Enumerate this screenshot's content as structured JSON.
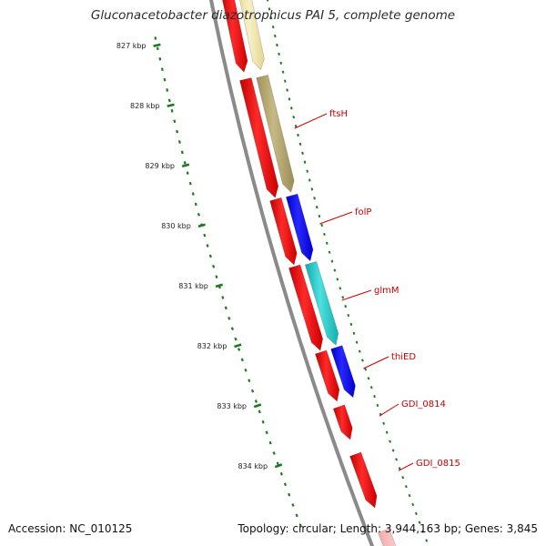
{
  "title": "Gluconacetobacter diazotrophicus PAI 5, complete genome",
  "footer": {
    "accession": "Accession: NC_010125",
    "summary": "Topology: circular; Length: 3,944,163 bp; Genes: 3,845"
  },
  "ticks": [
    {
      "label": "827 kbp"
    },
    {
      "label": "828 kbp"
    },
    {
      "label": "829 kbp"
    },
    {
      "label": "830 kbp"
    },
    {
      "label": "831 kbp"
    },
    {
      "label": "832 kbp"
    },
    {
      "label": "833 kbp"
    },
    {
      "label": "834 kbp"
    }
  ],
  "genes": [
    {
      "label": "ftsH"
    },
    {
      "label": "folP"
    },
    {
      "label": "glmM"
    },
    {
      "label": "thiED"
    },
    {
      "label": "GDI_0814"
    },
    {
      "label": "GDI_0815"
    }
  ],
  "colors": {
    "cds": "#ff0000",
    "gene_yellow": "#f0e6a8",
    "gene_olive": "#b8ab72",
    "gene_blue": "#0000ff",
    "gene_cyan": "#22cccc",
    "pink": "#ffc0c0",
    "backbone": "#888888",
    "ticks": "#1f7a1f",
    "label_red": "#cc0000"
  }
}
